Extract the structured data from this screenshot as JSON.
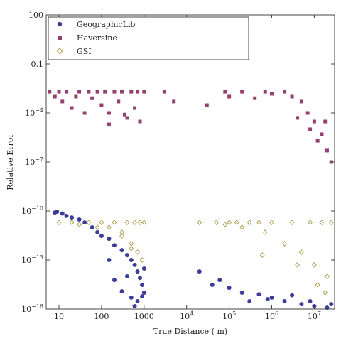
{
  "chart_data": {
    "type": "scatter",
    "xlabel": "True Distance ( m)",
    "ylabel": "Relative Error",
    "x_scale": "log",
    "y_scale": "log",
    "xlim": [
      5,
      30000000
    ],
    "ylim": [
      1e-16,
      100
    ],
    "grid": false,
    "legend_position": "top-left",
    "x_ticks": [
      {
        "value": 10,
        "label": "10"
      },
      {
        "value": 100,
        "label": "100"
      },
      {
        "value": 1000,
        "label": "1000"
      },
      {
        "value": 10000,
        "label": "10",
        "exp": "4"
      },
      {
        "value": 100000,
        "label": "10",
        "exp": "5"
      },
      {
        "value": 1000000,
        "label": "10",
        "exp": "6"
      },
      {
        "value": 10000000,
        "label": "10",
        "exp": "7"
      }
    ],
    "y_ticks": [
      {
        "value": 1e-16,
        "label": "10",
        "exp": "−16"
      },
      {
        "value": 1e-13,
        "label": "10",
        "exp": "−13"
      },
      {
        "value": 1e-10,
        "label": "10",
        "exp": "−10"
      },
      {
        "value": 1e-07,
        "label": "10",
        "exp": "−7"
      },
      {
        "value": 0.0001,
        "label": "10",
        "exp": "−4"
      },
      {
        "value": 0.1,
        "label": "0.1"
      },
      {
        "value": 100,
        "label": "100"
      }
    ],
    "series": [
      {
        "name": "GeographicLib",
        "marker": "circle",
        "color": "#3a3d99",
        "points": [
          [
            8,
            8e-11
          ],
          [
            9,
            9e-11
          ],
          [
            12,
            7e-11
          ],
          [
            15,
            5e-11
          ],
          [
            20,
            4e-11
          ],
          [
            30,
            3e-11
          ],
          [
            40,
            2e-11
          ],
          [
            60,
            1e-11
          ],
          [
            80,
            5e-12
          ],
          [
            100,
            3e-12
          ],
          [
            150,
            2e-12
          ],
          [
            200,
            8e-13
          ],
          [
            300,
            4e-13
          ],
          [
            400,
            2e-13
          ],
          [
            500,
            1e-13
          ],
          [
            600,
            5e-14
          ],
          [
            700,
            2e-14
          ],
          [
            800,
            8e-15
          ],
          [
            900,
            3e-15
          ],
          [
            1000,
            1e-15
          ],
          [
            500,
            5e-16
          ],
          [
            700,
            3e-16
          ],
          [
            600,
            1.5e-16
          ],
          [
            300,
            1.2e-15
          ],
          [
            200,
            6e-15
          ],
          [
            150,
            1e-13
          ],
          [
            400,
            1e-14
          ],
          [
            900,
            6e-16
          ],
          [
            1000,
            3e-14
          ],
          [
            20000,
            2e-14
          ],
          [
            40000,
            3e-15
          ],
          [
            60000,
            6e-15
          ],
          [
            100000,
            2e-15
          ],
          [
            200000,
            1e-15
          ],
          [
            500000,
            8e-16
          ],
          [
            1000000,
            5e-16
          ],
          [
            2000000,
            3e-16
          ],
          [
            5000000,
            2e-16
          ],
          [
            10000000,
            1.5e-16
          ],
          [
            20000000,
            1.2e-16
          ],
          [
            300000,
            3e-16
          ],
          [
            800000,
            4e-16
          ],
          [
            3000000,
            7e-16
          ],
          [
            8000000,
            3e-16
          ],
          [
            25000000,
            2e-16
          ]
        ]
      },
      {
        "name": "Haversine",
        "marker": "square",
        "color": "#943f6e",
        "points": [
          [
            6,
            0.002
          ],
          [
            8,
            0.001
          ],
          [
            10,
            0.002
          ],
          [
            12,
            0.0005
          ],
          [
            15,
            0.002
          ],
          [
            20,
            0.0002
          ],
          [
            25,
            0.001
          ],
          [
            30,
            0.002
          ],
          [
            40,
            0.0001
          ],
          [
            50,
            0.002
          ],
          [
            60,
            0.0008
          ],
          [
            80,
            0.002
          ],
          [
            100,
            0.0003
          ],
          [
            120,
            0.002
          ],
          [
            150,
            0.0001
          ],
          [
            200,
            0.002
          ],
          [
            250,
            0.0005
          ],
          [
            300,
            0.002
          ],
          [
            400,
            5e-05
          ],
          [
            500,
            0.002
          ],
          [
            600,
            0.0002
          ],
          [
            700,
            0.002
          ],
          [
            800,
            3e-05
          ],
          [
            1000,
            0.002
          ],
          [
            150,
            2e-05
          ],
          [
            350,
            8e-05
          ],
          [
            3000,
            0.002
          ],
          [
            5000,
            0.0005
          ],
          [
            30000,
            0.0003
          ],
          [
            80000,
            0.002
          ],
          [
            100000,
            0.001
          ],
          [
            200000,
            0.002
          ],
          [
            400000,
            0.0008
          ],
          [
            700000,
            0.002
          ],
          [
            1000000,
            0.0015
          ],
          [
            2000000,
            0.002
          ],
          [
            3000000,
            0.001
          ],
          [
            5000000,
            0.0005
          ],
          [
            7000000,
            0.0001
          ],
          [
            10000000,
            3e-05
          ],
          [
            15000000,
            5e-06
          ],
          [
            20000000,
            5e-07
          ],
          [
            25000000,
            1e-07
          ],
          [
            4000000,
            5e-05
          ],
          [
            8000000,
            1e-05
          ],
          [
            12000000,
            2e-06
          ],
          [
            18000000,
            3e-05
          ]
        ]
      },
      {
        "name": "GSI",
        "marker": "diamond-open",
        "color": "#a89a4a",
        "points": [
          [
            10,
            2e-11
          ],
          [
            20,
            2e-11
          ],
          [
            30,
            1.5e-11
          ],
          [
            50,
            2e-11
          ],
          [
            80,
            1e-11
          ],
          [
            100,
            2e-11
          ],
          [
            150,
            1e-11
          ],
          [
            200,
            2e-11
          ],
          [
            300,
            5e-12
          ],
          [
            400,
            2e-11
          ],
          [
            500,
            1e-12
          ],
          [
            600,
            2e-11
          ],
          [
            700,
            3e-13
          ],
          [
            800,
            2e-11
          ],
          [
            900,
            1e-13
          ],
          [
            1000,
            2e-11
          ],
          [
            300,
            3e-12
          ],
          [
            500,
            5e-13
          ],
          [
            20000,
            2e-11
          ],
          [
            50000,
            2e-11
          ],
          [
            80000,
            1.5e-11
          ],
          [
            100000,
            2e-11
          ],
          [
            150000,
            2e-11
          ],
          [
            200000,
            1e-11
          ],
          [
            300000,
            2e-11
          ],
          [
            500000,
            2e-11
          ],
          [
            700000,
            5e-12
          ],
          [
            1000000,
            2e-11
          ],
          [
            2000000,
            1e-12
          ],
          [
            3000000,
            2e-11
          ],
          [
            5000000,
            3e-13
          ],
          [
            8000000,
            2e-11
          ],
          [
            10000000,
            5e-14
          ],
          [
            15000000,
            2e-11
          ],
          [
            20000000,
            1e-14
          ],
          [
            25000000,
            2e-11
          ],
          [
            12000000,
            3e-15
          ],
          [
            18000000,
            1e-15
          ],
          [
            4000000,
            5e-14
          ],
          [
            600000,
            2e-13
          ]
        ]
      }
    ]
  }
}
